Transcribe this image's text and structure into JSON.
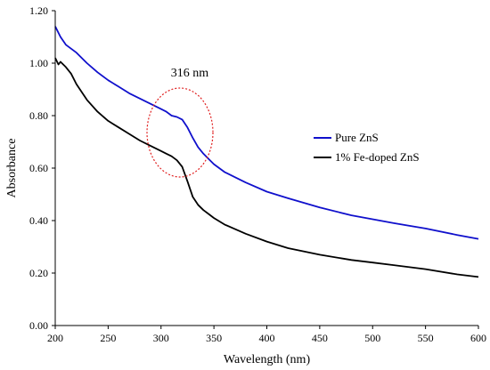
{
  "chart_data": {
    "type": "line",
    "xlabel": "Wavelength (nm)",
    "ylabel": "Absorbance",
    "xlim": [
      200,
      600
    ],
    "ylim": [
      0,
      1.2
    ],
    "xticks": [
      "200",
      "250",
      "300",
      "350",
      "400",
      "450",
      "500",
      "550",
      "600"
    ],
    "yticks": [
      "0.00",
      "0.20",
      "0.40",
      "0.60",
      "0.80",
      "1.00",
      "1.20"
    ],
    "grid": false,
    "legend_position": "right",
    "annotation": {
      "text": "316 nm",
      "x": 316,
      "y": 0.75
    },
    "series": [
      {
        "name": "Pure ZnS",
        "color": "#1010cc",
        "x": [
          200,
          205,
          210,
          220,
          230,
          240,
          250,
          260,
          270,
          280,
          290,
          300,
          305,
          310,
          315,
          320,
          325,
          330,
          335,
          340,
          345,
          350,
          360,
          370,
          380,
          400,
          420,
          450,
          480,
          500,
          520,
          550,
          580,
          600
        ],
        "y": [
          1.14,
          1.1,
          1.07,
          1.04,
          1.0,
          0.965,
          0.935,
          0.91,
          0.885,
          0.865,
          0.845,
          0.825,
          0.815,
          0.8,
          0.795,
          0.785,
          0.755,
          0.715,
          0.68,
          0.655,
          0.635,
          0.615,
          0.585,
          0.565,
          0.545,
          0.51,
          0.485,
          0.45,
          0.42,
          0.405,
          0.39,
          0.37,
          0.345,
          0.33
        ]
      },
      {
        "name": "1% Fe-doped ZnS",
        "color": "#000000",
        "x": [
          200,
          203,
          205,
          210,
          215,
          220,
          230,
          240,
          250,
          260,
          270,
          280,
          290,
          300,
          305,
          310,
          315,
          320,
          325,
          330,
          335,
          340,
          345,
          350,
          360,
          380,
          400,
          420,
          450,
          480,
          500,
          520,
          550,
          580,
          600
        ],
        "y": [
          1.02,
          0.995,
          1.005,
          0.985,
          0.96,
          0.92,
          0.86,
          0.815,
          0.78,
          0.755,
          0.73,
          0.705,
          0.685,
          0.665,
          0.655,
          0.645,
          0.63,
          0.605,
          0.55,
          0.49,
          0.46,
          0.44,
          0.425,
          0.41,
          0.385,
          0.35,
          0.32,
          0.295,
          0.27,
          0.25,
          0.24,
          0.23,
          0.215,
          0.195,
          0.185
        ]
      }
    ]
  }
}
